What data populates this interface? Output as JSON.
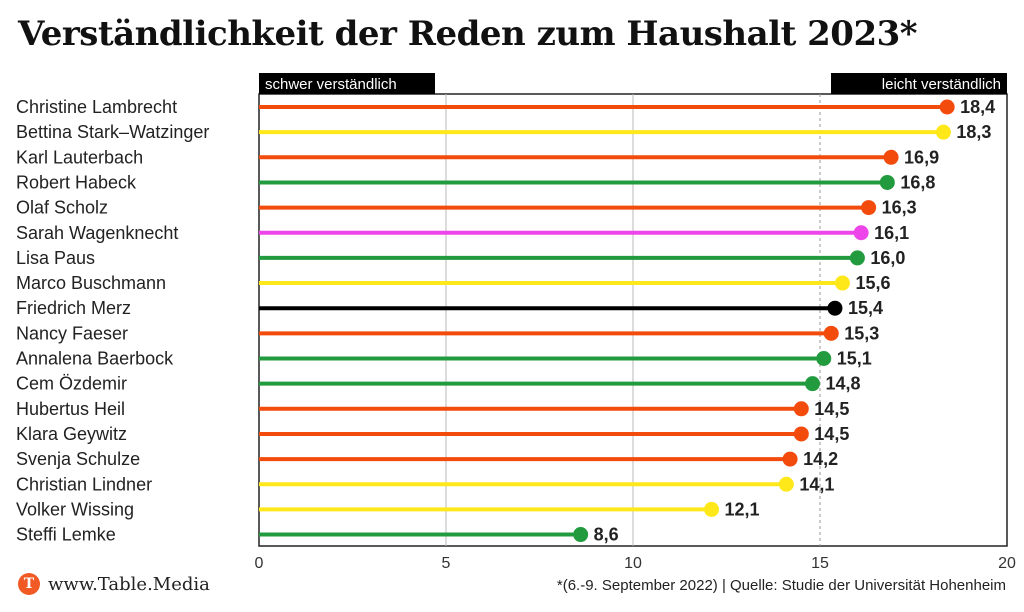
{
  "chart_data": {
    "type": "lollipop",
    "title": "Verständlichkeit der Reden zum Haushalt 2023*",
    "xlim": [
      0,
      20
    ],
    "xticks": [
      0,
      5,
      10,
      15,
      20
    ],
    "axis_caption_left": "schwer verständlich",
    "axis_caption_right": "leicht verständlich",
    "categories": [
      "Christine Lambrecht",
      "Bettina Stark–Watzinger",
      "Karl Lauterbach",
      "Robert Habeck",
      "Olaf Scholz",
      "Sarah Wagenknecht",
      "Lisa Paus",
      "Marco Buschmann",
      "Friedrich Merz",
      "Nancy Faeser",
      "Annalena Baerbock",
      "Cem Özdemir",
      "Hubertus Heil",
      "Klara Geywitz",
      "Svenja Schulze",
      "Christian Lindner",
      "Volker Wissing",
      "Steffi Lemke"
    ],
    "values": [
      18.4,
      18.3,
      16.9,
      16.8,
      16.3,
      16.1,
      16.0,
      15.6,
      15.4,
      15.3,
      15.1,
      14.8,
      14.5,
      14.5,
      14.2,
      14.1,
      12.1,
      8.6
    ],
    "value_labels": [
      "18,4",
      "18,3",
      "16,9",
      "16,8",
      "16,3",
      "16,1",
      "16,0",
      "15,6",
      "15,4",
      "15,3",
      "15,1",
      "14,8",
      "14,5",
      "14,5",
      "14,2",
      "14,1",
      "12,1",
      "8,6"
    ],
    "colors": [
      "#f24b0c",
      "#ffe81a",
      "#f24b0c",
      "#229a3e",
      "#f24b0c",
      "#ee45ea",
      "#229a3e",
      "#ffe81a",
      "#000000",
      "#f24b0c",
      "#229a3e",
      "#229a3e",
      "#f24b0c",
      "#f24b0c",
      "#f24b0c",
      "#ffe81a",
      "#ffe81a",
      "#229a3e"
    ],
    "reference_line": 15,
    "grid": true
  },
  "footer": {
    "brand_logo_letter": "T",
    "brand": "www.Table.Media",
    "source": "*(6.-9. September 2022) | Quelle: Studie der Universität Hohenheim"
  }
}
